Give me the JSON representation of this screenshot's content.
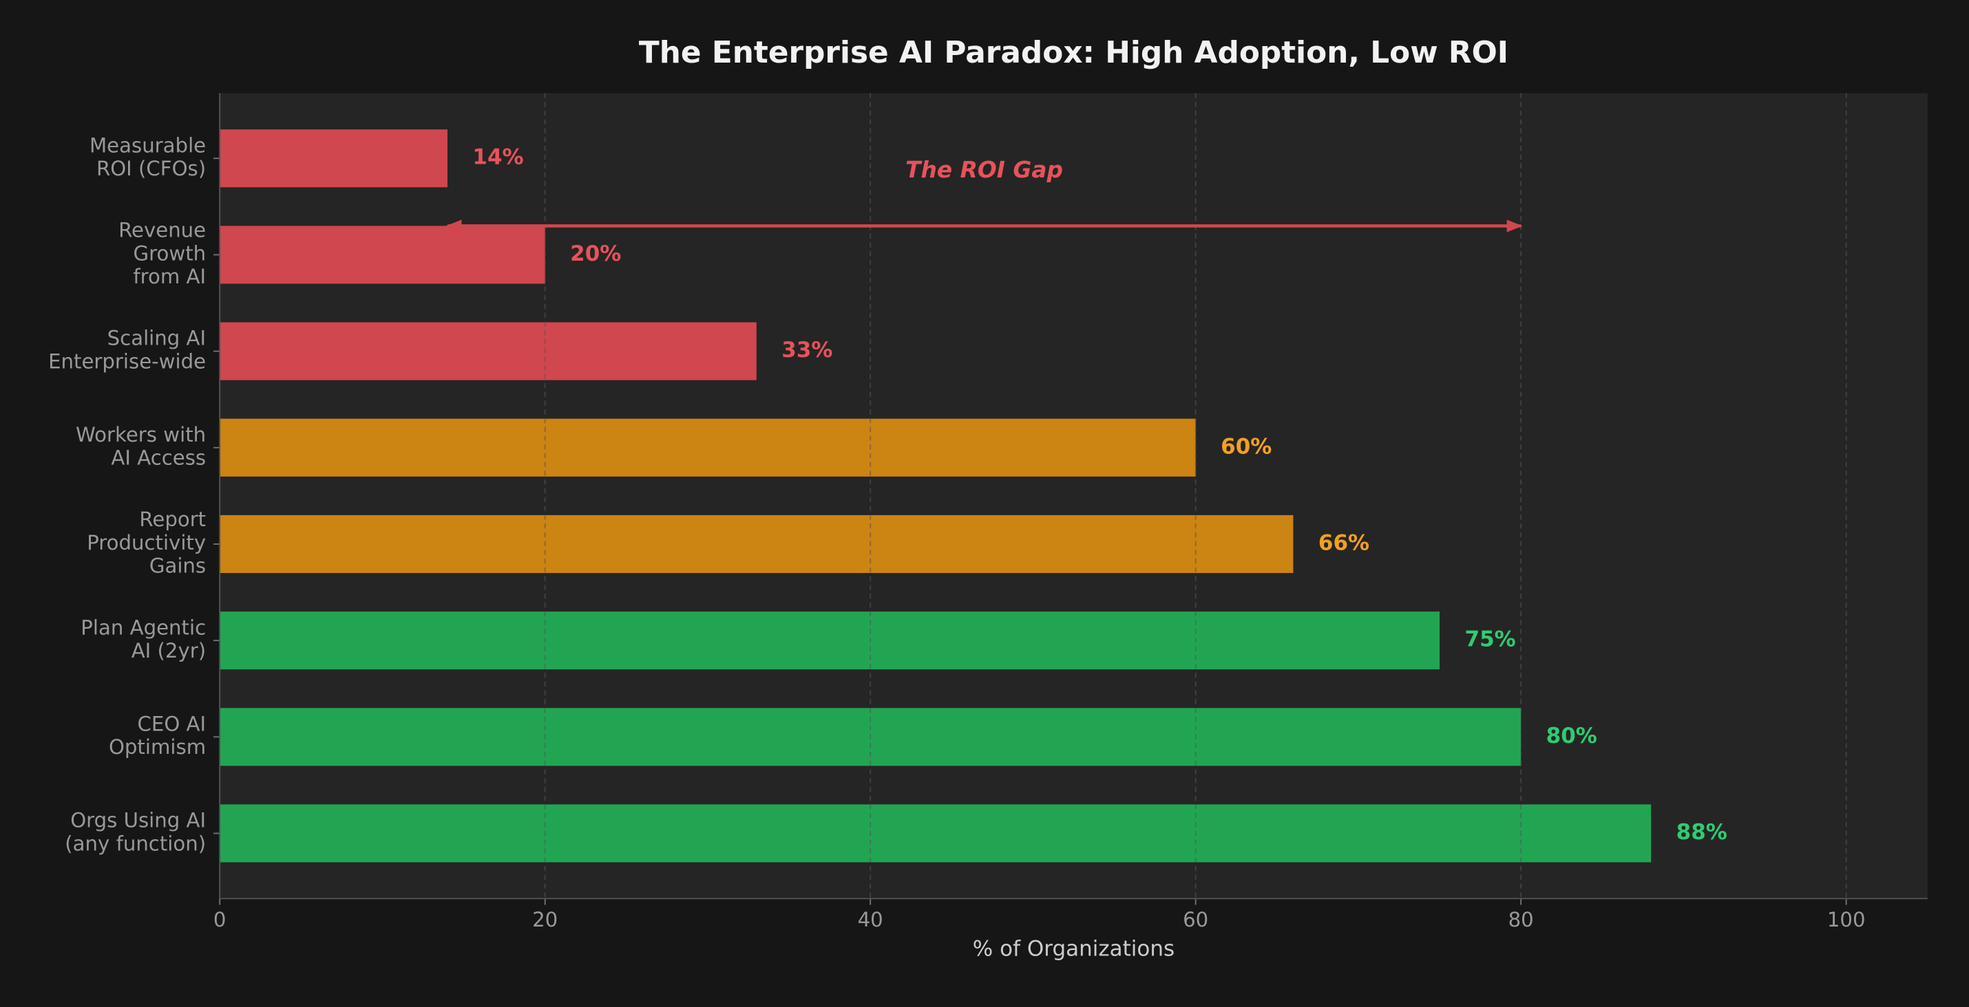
{
  "chart_data": {
    "type": "barh",
    "title": "The Enterprise AI Paradox: High Adoption, Low ROI",
    "xlabel": "% of Organizations",
    "categories": [
      [
        "Measurable",
        "ROI (CFOs)"
      ],
      [
        "Revenue",
        "Growth",
        "from AI"
      ],
      [
        "Scaling AI",
        "Enterprise-wide"
      ],
      [
        "Workers with",
        "AI Access"
      ],
      [
        "Report",
        "Productivity",
        "Gains"
      ],
      [
        "Plan Agentic",
        "AI (2yr)"
      ],
      [
        "CEO AI",
        "Optimism"
      ],
      [
        "Orgs Using AI",
        "(any function)"
      ]
    ],
    "values": [
      14,
      20,
      33,
      60,
      66,
      75,
      80,
      88
    ],
    "value_labels": [
      "14%",
      "20%",
      "33%",
      "60%",
      "66%",
      "75%",
      "80%",
      "88%"
    ],
    "colors": [
      "#d0474f",
      "#d0474f",
      "#d0474f",
      "#cc8412",
      "#cc8412",
      "#22a553",
      "#22a553",
      "#22a553"
    ],
    "label_colors": [
      "#e8525b",
      "#e8525b",
      "#e8525b",
      "#f2a023",
      "#f2a023",
      "#2ecc71",
      "#2ecc71",
      "#2ecc71"
    ],
    "xlim": [
      0,
      105
    ],
    "xticks": [
      0,
      20,
      40,
      60,
      80,
      100
    ],
    "grid": true,
    "annotation": {
      "text": "The ROI Gap",
      "from": 14,
      "to": 80,
      "color": "#e8525b"
    }
  }
}
